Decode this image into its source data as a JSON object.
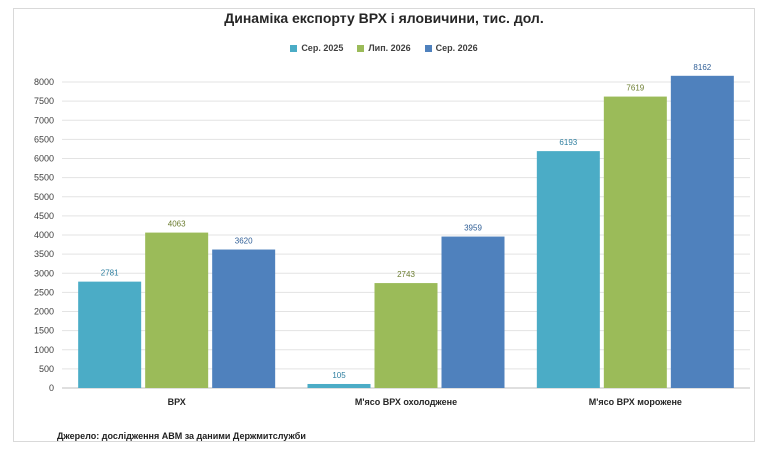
{
  "chart_data": {
    "type": "bar",
    "title": "Динаміка експорту ВРХ і яловичини, тис. дол.",
    "categories": [
      "ВРХ",
      "М'ясо ВРХ охолоджене",
      "М'ясо ВРХ морожене"
    ],
    "series": [
      {
        "name": "Сер. 2025",
        "color": "#4bacc6",
        "label_color": "#2e7fa0",
        "values": [
          2781,
          105,
          6193
        ]
      },
      {
        "name": "Лип. 2026",
        "color": "#9bbb59",
        "label_color": "#6b7c2f",
        "values": [
          4063,
          2743,
          7619
        ]
      },
      {
        "name": "Сер. 2026",
        "color": "#4f81bd",
        "label_color": "#2f5e96",
        "values": [
          3620,
          3959,
          8162
        ]
      }
    ],
    "ylim": [
      0,
      8000
    ],
    "yticks": [
      0,
      500,
      1000,
      1500,
      2000,
      2500,
      3000,
      3500,
      4000,
      4500,
      5000,
      5500,
      6000,
      6500,
      7000,
      7500,
      8000
    ],
    "grid": true,
    "legend_position": "top-center",
    "xlabel": "",
    "ylabel": ""
  },
  "source_note": "Джерело: дослідження АВМ за даними Держмитслужби"
}
